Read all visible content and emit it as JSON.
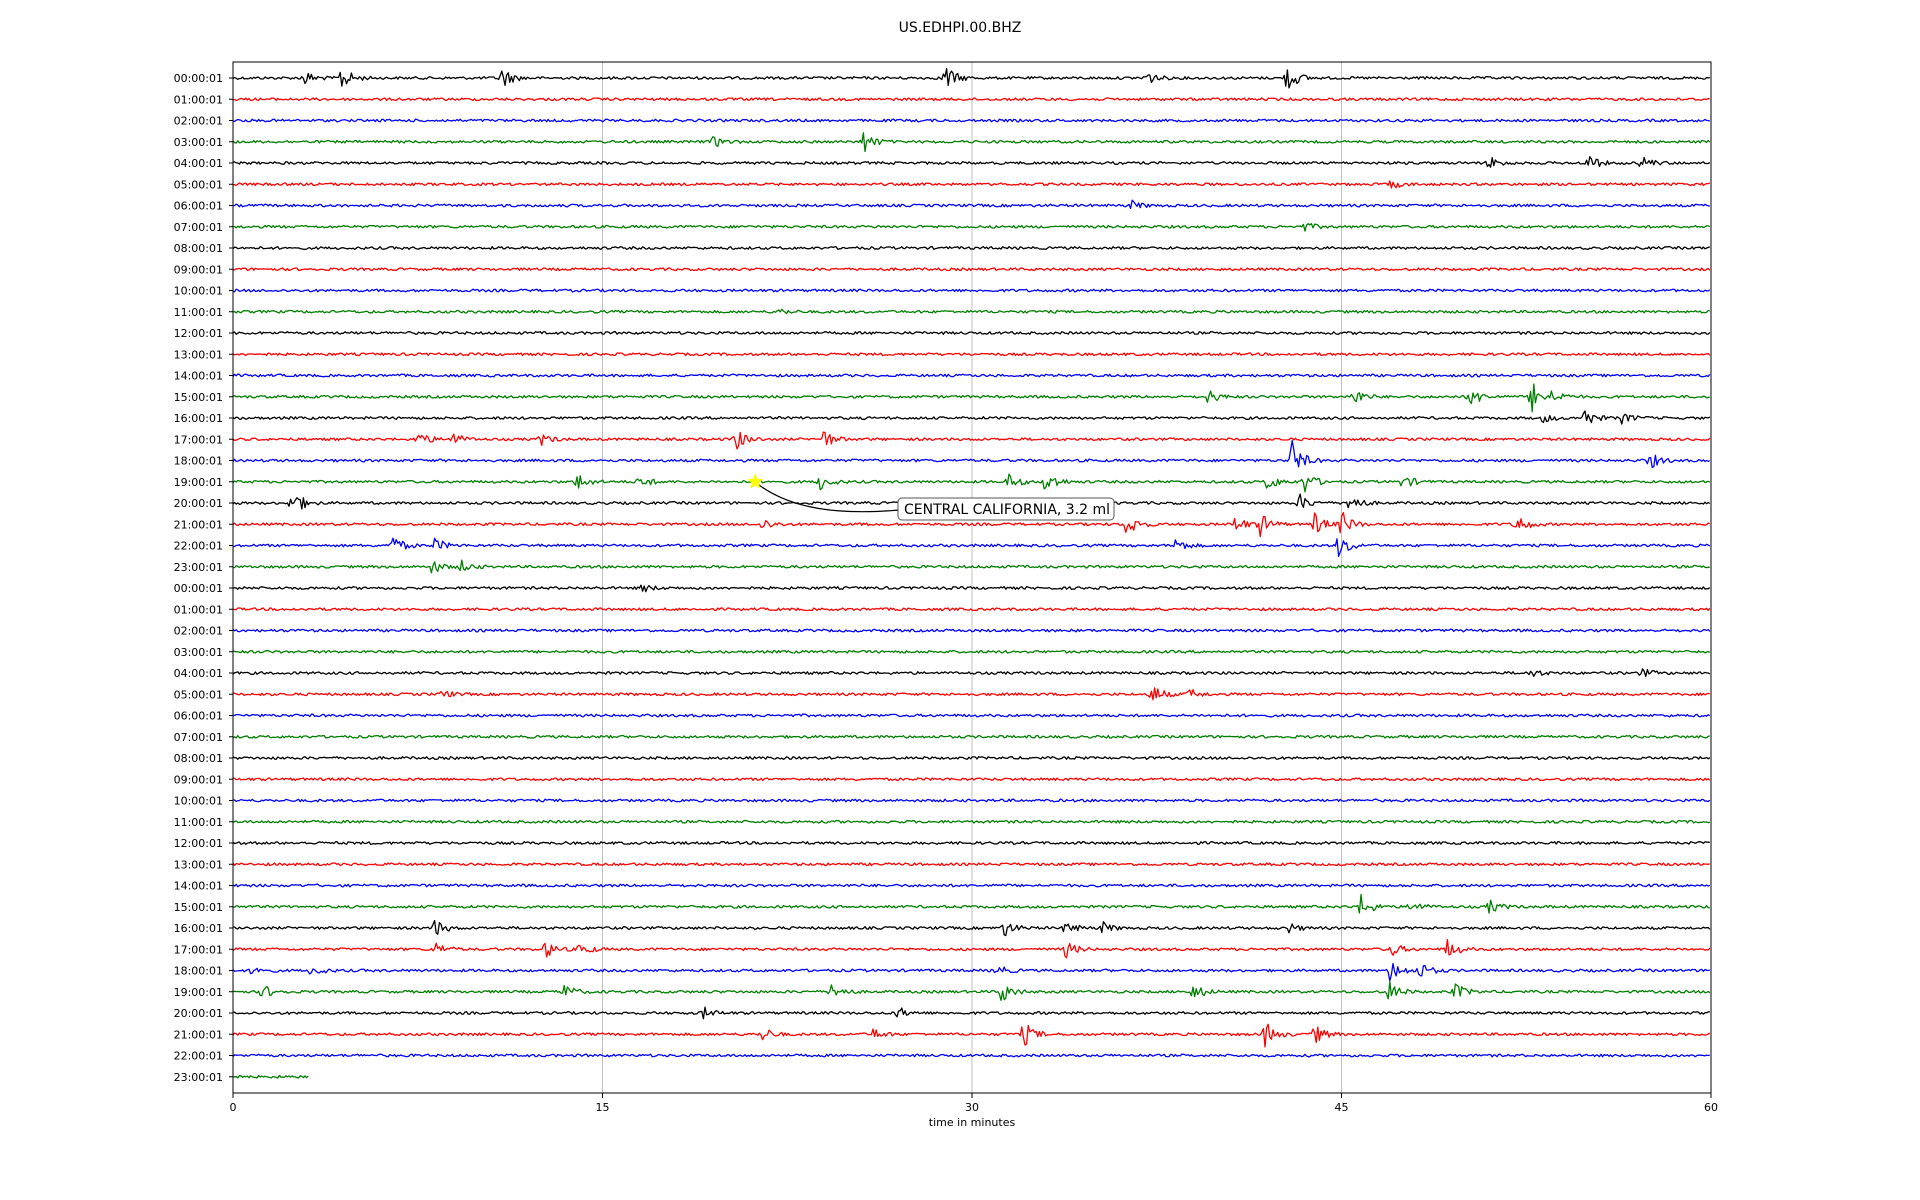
{
  "chart_data": {
    "type": "line",
    "title": "US.EDHPI.00.BHZ",
    "xlabel": "time in minutes",
    "ylabel": "",
    "xlim": [
      0,
      60
    ],
    "x_ticks": [
      "0",
      "15",
      "30",
      "45",
      "60"
    ],
    "grid": "vertical",
    "trace_colors": [
      "#000000",
      "#ff0000",
      "#0000ff",
      "#008000"
    ],
    "rows": [
      {
        "label": "00:00:01",
        "events": [
          {
            "t": 2.9,
            "a": 0.5
          },
          {
            "t": 4.4,
            "a": 0.9
          },
          {
            "t": 10.9,
            "a": 0.8
          },
          {
            "t": 28.9,
            "a": 1.0
          },
          {
            "t": 37.0,
            "a": 0.6
          },
          {
            "t": 42.8,
            "a": 1.0
          }
        ]
      },
      {
        "label": "01:00:01",
        "events": []
      },
      {
        "label": "02:00:01",
        "events": []
      },
      {
        "label": "03:00:01",
        "events": [
          {
            "t": 19.5,
            "a": 0.4
          },
          {
            "t": 25.6,
            "a": 0.8
          }
        ]
      },
      {
        "label": "04:00:01",
        "events": [
          {
            "t": 51.0,
            "a": 0.5
          },
          {
            "t": 55.0,
            "a": 0.6
          },
          {
            "t": 57.2,
            "a": 0.5
          }
        ]
      },
      {
        "label": "05:00:01",
        "events": [
          {
            "t": 47.0,
            "a": 0.3
          }
        ]
      },
      {
        "label": "06:00:01",
        "events": [
          {
            "t": 36.5,
            "a": 0.3
          }
        ]
      },
      {
        "label": "07:00:01",
        "events": [
          {
            "t": 43.5,
            "a": 0.3
          }
        ]
      },
      {
        "label": "08:00:01",
        "events": []
      },
      {
        "label": "09:00:01",
        "events": []
      },
      {
        "label": "10:00:01",
        "events": []
      },
      {
        "label": "11:00:01",
        "events": [
          {
            "t": 22.2,
            "a": 0.2
          }
        ]
      },
      {
        "label": "12:00:01",
        "events": []
      },
      {
        "label": "13:00:01",
        "events": []
      },
      {
        "label": "14:00:01",
        "events": []
      },
      {
        "label": "15:00:01",
        "events": [
          {
            "t": 39.6,
            "a": 0.5
          },
          {
            "t": 45.5,
            "a": 0.6
          },
          {
            "t": 50.2,
            "a": 0.8
          },
          {
            "t": 52.7,
            "a": 1.2
          },
          {
            "t": 53.6,
            "a": 0.5
          }
        ]
      },
      {
        "label": "16:00:01",
        "events": [
          {
            "t": 53.2,
            "a": 0.3
          },
          {
            "t": 54.8,
            "a": 0.8
          },
          {
            "t": 56.4,
            "a": 0.4
          }
        ]
      },
      {
        "label": "17:00:01",
        "events": [
          {
            "t": 7.5,
            "a": 0.6
          },
          {
            "t": 8.9,
            "a": 0.5
          },
          {
            "t": 12.5,
            "a": 0.4
          },
          {
            "t": 20.4,
            "a": 0.8
          },
          {
            "t": 23.9,
            "a": 0.8
          }
        ]
      },
      {
        "label": "18:00:01",
        "events": [
          {
            "t": 43.0,
            "a": 1.4
          },
          {
            "t": 57.5,
            "a": 0.6
          }
        ]
      },
      {
        "label": "19:00:01",
        "events": [
          {
            "t": 14.0,
            "a": 0.6
          },
          {
            "t": 16.5,
            "a": 0.5
          },
          {
            "t": 23.8,
            "a": 0.6
          },
          {
            "t": 31.5,
            "a": 0.6
          },
          {
            "t": 33.0,
            "a": 0.9
          },
          {
            "t": 42.0,
            "a": 0.6
          },
          {
            "t": 43.5,
            "a": 0.8
          },
          {
            "t": 47.5,
            "a": 0.5
          }
        ]
      },
      {
        "label": "20:00:01",
        "events": [
          {
            "t": 2.4,
            "a": 1.1
          },
          {
            "t": 43.3,
            "a": 0.6
          },
          {
            "t": 45.3,
            "a": 0.8
          }
        ]
      },
      {
        "label": "21:00:01",
        "events": [
          {
            "t": 21.5,
            "a": 0.4
          },
          {
            "t": 36.3,
            "a": 0.9
          },
          {
            "t": 40.7,
            "a": 0.6
          },
          {
            "t": 41.7,
            "a": 0.8
          },
          {
            "t": 43.9,
            "a": 0.8
          },
          {
            "t": 45.0,
            "a": 0.9
          },
          {
            "t": 52.1,
            "a": 0.8
          }
        ]
      },
      {
        "label": "22:00:01",
        "events": [
          {
            "t": 6.5,
            "a": 0.7
          },
          {
            "t": 8.2,
            "a": 0.5
          },
          {
            "t": 38.2,
            "a": 0.6
          },
          {
            "t": 44.9,
            "a": 0.9
          }
        ]
      },
      {
        "label": "23:00:01",
        "events": [
          {
            "t": 8.1,
            "a": 0.5
          },
          {
            "t": 9.3,
            "a": 0.4
          }
        ]
      },
      {
        "label": "00:00:01",
        "events": [
          {
            "t": 16.6,
            "a": 0.3
          }
        ]
      },
      {
        "label": "01:00:01",
        "events": []
      },
      {
        "label": "02:00:01",
        "events": []
      },
      {
        "label": "03:00:01",
        "events": []
      },
      {
        "label": "04:00:01",
        "events": [
          {
            "t": 52.7,
            "a": 0.3
          },
          {
            "t": 57.2,
            "a": 0.3
          }
        ]
      },
      {
        "label": "05:00:01",
        "events": [
          {
            "t": 8.5,
            "a": 0.3
          },
          {
            "t": 37.3,
            "a": 0.8
          },
          {
            "t": 38.8,
            "a": 0.4
          }
        ]
      },
      {
        "label": "06:00:01",
        "events": []
      },
      {
        "label": "07:00:01",
        "events": []
      },
      {
        "label": "08:00:01",
        "events": []
      },
      {
        "label": "09:00:01",
        "events": []
      },
      {
        "label": "10:00:01",
        "events": []
      },
      {
        "label": "11:00:01",
        "events": []
      },
      {
        "label": "12:00:01",
        "events": []
      },
      {
        "label": "13:00:01",
        "events": []
      },
      {
        "label": "14:00:01",
        "events": []
      },
      {
        "label": "15:00:01",
        "events": [
          {
            "t": 45.8,
            "a": 0.9
          },
          {
            "t": 47.8,
            "a": 0.5
          },
          {
            "t": 51.0,
            "a": 0.5
          }
        ]
      },
      {
        "label": "16:00:01",
        "events": [
          {
            "t": 8.2,
            "a": 0.6
          },
          {
            "t": 31.3,
            "a": 0.6
          },
          {
            "t": 33.8,
            "a": 0.5
          },
          {
            "t": 35.3,
            "a": 0.4
          },
          {
            "t": 42.8,
            "a": 0.4
          }
        ]
      },
      {
        "label": "17:00:01",
        "events": [
          {
            "t": 8.2,
            "a": 0.5
          },
          {
            "t": 12.7,
            "a": 0.6
          },
          {
            "t": 14.1,
            "a": 0.5
          },
          {
            "t": 33.8,
            "a": 0.6
          },
          {
            "t": 47.0,
            "a": 0.5
          },
          {
            "t": 49.3,
            "a": 0.7
          }
        ]
      },
      {
        "label": "18:00:01",
        "events": [
          {
            "t": 0.8,
            "a": 0.4
          },
          {
            "t": 3.2,
            "a": 0.4
          },
          {
            "t": 31.0,
            "a": 0.4
          },
          {
            "t": 47.0,
            "a": 0.9
          },
          {
            "t": 48.2,
            "a": 0.6
          }
        ]
      },
      {
        "label": "19:00:01",
        "events": [
          {
            "t": 1.2,
            "a": 0.5
          },
          {
            "t": 13.4,
            "a": 0.6
          },
          {
            "t": 24.3,
            "a": 0.7
          },
          {
            "t": 31.2,
            "a": 0.8
          },
          {
            "t": 39.0,
            "a": 0.6
          },
          {
            "t": 46.9,
            "a": 0.8
          },
          {
            "t": 49.6,
            "a": 0.6
          }
        ]
      },
      {
        "label": "20:00:01",
        "events": [
          {
            "t": 19.1,
            "a": 0.4
          },
          {
            "t": 27.0,
            "a": 0.4
          }
        ]
      },
      {
        "label": "21:00:01",
        "events": [
          {
            "t": 21.5,
            "a": 0.5
          },
          {
            "t": 26.0,
            "a": 0.4
          },
          {
            "t": 32.1,
            "a": 0.9
          },
          {
            "t": 41.9,
            "a": 0.9
          },
          {
            "t": 43.9,
            "a": 0.7
          }
        ]
      },
      {
        "label": "22:00:01",
        "events": []
      },
      {
        "label": "23:00:01",
        "end_t": 3.1,
        "events": []
      }
    ],
    "event_marker": {
      "row": 19,
      "t": 21.2,
      "color": "#ffff00"
    },
    "annotation": "CENTRAL CALIFORNIA, 3.2 ml"
  }
}
